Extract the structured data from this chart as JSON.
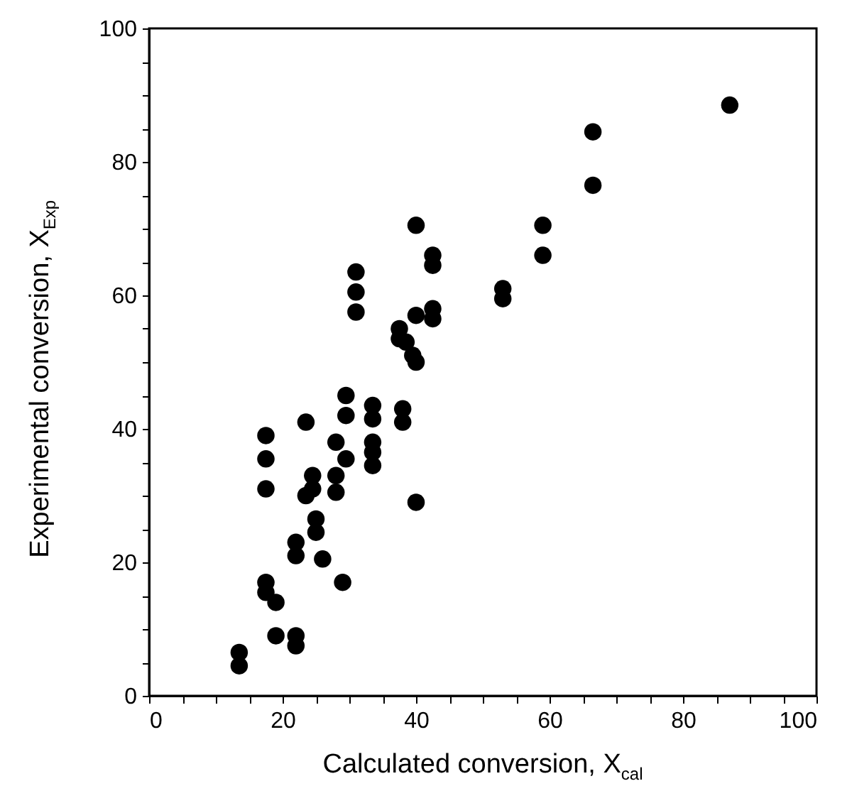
{
  "chart_data": {
    "type": "scatter",
    "xlabel": "Calculated conversion, X$_{cal}$",
    "ylabel": "Experimental conversion, X$_{Exp}$",
    "xlim": [
      0,
      100
    ],
    "ylim": [
      0,
      100
    ],
    "xticks": [
      0,
      {
        "value": 5,
        "label": null
      },
      20,
      {
        "value": 10,
        "label": null
      },
      {
        "value": 15,
        "label": null
      },
      {
        "value": 25,
        "label": null
      },
      {
        "value": 30,
        "label": null
      },
      {
        "value": 35,
        "label": null
      },
      40,
      {
        "value": 45,
        "label": null
      },
      {
        "value": 50,
        "label": null
      },
      {
        "value": 55,
        "label": null
      },
      60,
      {
        "value": 65,
        "label": null
      },
      {
        "value": 70,
        "label": null
      },
      {
        "value": 75,
        "label": null
      },
      80,
      {
        "value": 85,
        "label": null
      },
      {
        "value": 90,
        "label": null
      },
      {
        "value": 95,
        "label": null
      },
      100
    ],
    "yticks": [
      0,
      {
        "value": 5,
        "label": null
      },
      20,
      {
        "value": 10,
        "label": null
      },
      {
        "value": 15,
        "label": null
      },
      {
        "value": 25,
        "label": null
      },
      {
        "value": 30,
        "label": null
      },
      {
        "value": 35,
        "label": null
      },
      40,
      {
        "value": 45,
        "label": null
      },
      {
        "value": 50,
        "label": null
      },
      {
        "value": 55,
        "label": null
      },
      60,
      {
        "value": 65,
        "label": null
      },
      {
        "value": 70,
        "label": null
      },
      {
        "value": 75,
        "label": null
      },
      80,
      {
        "value": 85,
        "label": null
      },
      {
        "value": 90,
        "label": null
      },
      {
        "value": 95,
        "label": null
      },
      100
    ],
    "marker": "circle",
    "grid": false,
    "series": [
      {
        "color": "#000000",
        "x": [
          13.5,
          13.5,
          17.5,
          17.5,
          17.5,
          17.5,
          17.5,
          19,
          19,
          22,
          22,
          22,
          22,
          23.5,
          23.5,
          24.5,
          24.5,
          25,
          25,
          26,
          28,
          28,
          28,
          29,
          29.5,
          29.5,
          29.5,
          31,
          31,
          31,
          33.5,
          33.5,
          33.5,
          33.5,
          33.5,
          37.5,
          37.5,
          38,
          38,
          38.5,
          39.5,
          40,
          40,
          40,
          40,
          42.5,
          42.5,
          42.5,
          42.5,
          53,
          53,
          59,
          59,
          66.5,
          66.5,
          87
        ],
        "values": [
          6.5,
          4.5,
          39,
          35.5,
          31,
          17,
          15.5,
          14,
          9,
          7.5,
          9,
          23,
          21,
          30,
          41,
          31,
          33,
          24.5,
          26.5,
          20.5,
          38,
          33,
          30.5,
          17,
          45,
          42,
          35.5,
          63.5,
          60.5,
          57.5,
          41.5,
          43.5,
          38,
          36.5,
          34.5,
          55,
          53.5,
          43,
          41,
          53,
          51,
          50,
          57,
          70.5,
          29,
          66,
          64.5,
          58,
          56.5,
          61,
          59.5,
          70.5,
          66,
          84.5,
          76.5,
          88.5
        ]
      }
    ]
  }
}
